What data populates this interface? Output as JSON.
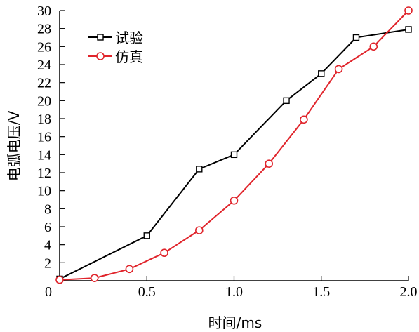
{
  "chart_data": {
    "type": "line",
    "xlabel": "时间/ms",
    "ylabel": "电弧电压/V",
    "xlim": [
      0,
      2.0
    ],
    "ylim": [
      0,
      30
    ],
    "x_ticks": [
      "0",
      "0.5",
      "1.0",
      "1.5",
      "2.0"
    ],
    "y_ticks": [
      "2",
      "4",
      "6",
      "8",
      "10",
      "12",
      "14",
      "16",
      "18",
      "20",
      "22",
      "24",
      "26",
      "28",
      "30"
    ],
    "legend_position": "top-left",
    "grid": false,
    "series": [
      {
        "name": "试验",
        "color": "#000000",
        "marker": "square",
        "x": [
          0.0,
          0.5,
          0.8,
          1.0,
          1.3,
          1.5,
          1.7,
          2.0
        ],
        "y": [
          0.2,
          5.0,
          12.4,
          14.0,
          20.0,
          23.0,
          27.0,
          27.9
        ]
      },
      {
        "name": "仿真",
        "color": "#e0242b",
        "marker": "circle",
        "x": [
          0.0,
          0.2,
          0.4,
          0.6,
          0.8,
          1.0,
          1.2,
          1.4,
          1.6,
          1.8,
          2.0
        ],
        "y": [
          0.1,
          0.3,
          1.3,
          3.1,
          5.6,
          8.9,
          13.0,
          17.9,
          23.5,
          26.0,
          30.0
        ]
      }
    ]
  }
}
